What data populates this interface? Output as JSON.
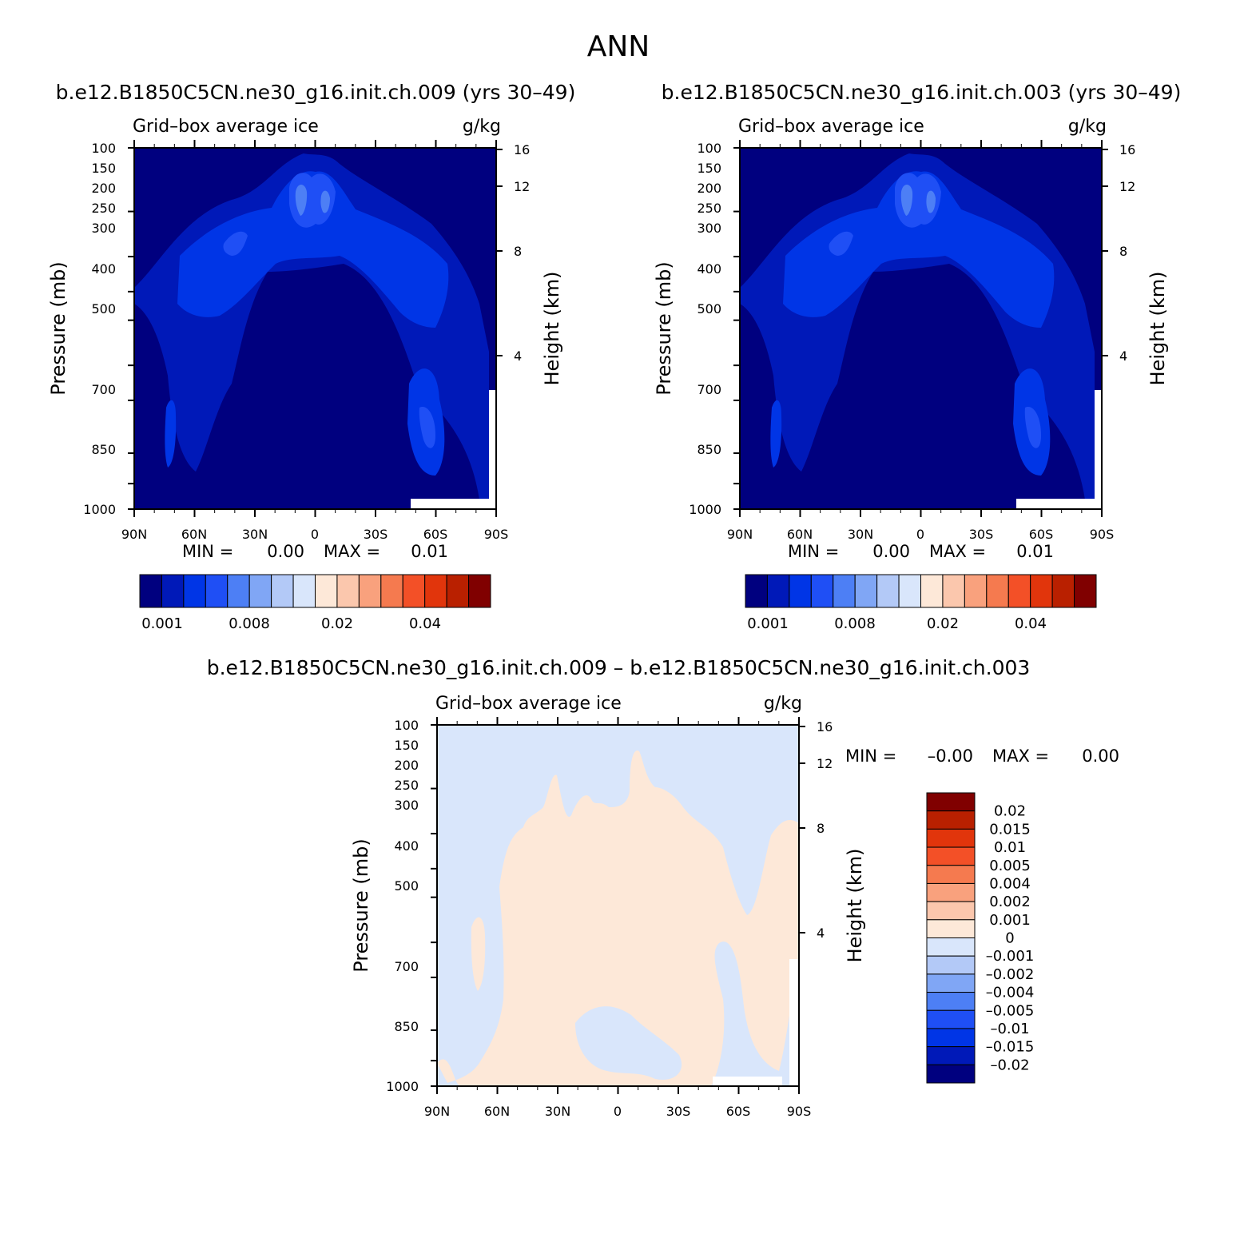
{
  "figure": {
    "season": "ANN"
  },
  "chart_data": [
    {
      "type": "heatmap",
      "run_title": "b.e12.B1850C5CN.ne30_g16.init.ch.009 (yrs 30–49)",
      "field_label": "Grid–box average ice",
      "units": "g/kg",
      "xlabel": "",
      "ylabel": "Pressure (mb)",
      "ylabel_right": "Height (km)",
      "x_ticks": [
        "90N",
        "60N",
        "30N",
        "0",
        "30S",
        "60S",
        "90S"
      ],
      "y_ticks": [
        "100",
        "150",
        "200",
        "250",
        "300",
        "400",
        "500",
        "700",
        "850",
        "1000"
      ],
      "y_right_ticks": [
        "16",
        "12",
        "8",
        "4"
      ],
      "min_label": "MIN =",
      "min_value": "0.00",
      "max_label": "MAX =",
      "max_value": "0.01",
      "colorbar_labels": [
        "0.001",
        "0.008",
        "0.02",
        "0.04"
      ],
      "colorbar_colors": [
        "#00007f",
        "#0019b8",
        "#0035e6",
        "#1f4ff5",
        "#4d7ff5",
        "#80a6f5",
        "#b3c9f7",
        "#d9e6fb",
        "#fde8d8",
        "#fbc7ad",
        "#f9a17d",
        "#f57a4f",
        "#f35027",
        "#e1350c",
        "#b92000",
        "#800000"
      ],
      "field_levels": [
        {
          "pressure_mb": 100,
          "g_per_kg": [
            0.0002,
            0.0003,
            0.0005,
            0.001,
            0.0015,
            0.002,
            0.002,
            0.0015,
            0.001,
            0.0005,
            0.0003,
            0.0002,
            0.0002
          ]
        },
        {
          "pressure_mb": 200,
          "g_per_kg": [
            0.0005,
            0.001,
            0.002,
            0.003,
            0.004,
            0.006,
            0.006,
            0.005,
            0.003,
            0.002,
            0.001,
            0.0005,
            0.0003
          ]
        },
        {
          "pressure_mb": 300,
          "g_per_kg": [
            0.001,
            0.002,
            0.004,
            0.006,
            0.004,
            0.004,
            0.004,
            0.004,
            0.004,
            0.004,
            0.003,
            0.002,
            0.001
          ]
        },
        {
          "pressure_mb": 400,
          "g_per_kg": [
            0.002,
            0.004,
            0.004,
            0.003,
            0.002,
            0.001,
            0.001,
            0.001,
            0.002,
            0.004,
            0.004,
            0.003,
            0.001
          ]
        },
        {
          "pressure_mb": 500,
          "g_per_kg": [
            0.002,
            0.003,
            0.002,
            0.002,
            0.001,
            0.0005,
            0.0005,
            0.0005,
            0.001,
            0.002,
            0.004,
            0.003,
            0.002
          ]
        },
        {
          "pressure_mb": 700,
          "g_per_kg": [
            0.001,
            0.002,
            0.002,
            0.002,
            0.0005,
            0.0002,
            0.0002,
            0.0002,
            0.0005,
            0.002,
            0.006,
            0.001,
            0.001
          ]
        },
        {
          "pressure_mb": 850,
          "g_per_kg": [
            0.0005,
            0.002,
            0.002,
            0.001,
            0.0003,
            0.0002,
            0.0002,
            0.0002,
            0.0003,
            0.002,
            0.005,
            0.0005,
            0.0005
          ]
        },
        {
          "pressure_mb": 1000,
          "g_per_kg": [
            0.0002,
            0.0002,
            0.0002,
            0.0002,
            0.0002,
            0.0002,
            0.0002,
            0.0002,
            0.0002,
            0.0002,
            0.0002,
            0.0002,
            0.0002
          ]
        }
      ],
      "field_latitudes": [
        90,
        75,
        60,
        45,
        30,
        15,
        0,
        -15,
        -30,
        -45,
        -60,
        -75,
        -90
      ]
    },
    {
      "type": "heatmap",
      "run_title": "b.e12.B1850C5CN.ne30_g16.init.ch.003 (yrs 30–49)",
      "field_label": "Grid–box average ice",
      "units": "g/kg",
      "xlabel": "",
      "ylabel": "Pressure (mb)",
      "ylabel_right": "Height (km)",
      "x_ticks": [
        "90N",
        "60N",
        "30N",
        "0",
        "30S",
        "60S",
        "90S"
      ],
      "y_ticks": [
        "100",
        "150",
        "200",
        "250",
        "300",
        "400",
        "500",
        "700",
        "850",
        "1000"
      ],
      "y_right_ticks": [
        "16",
        "12",
        "8",
        "4"
      ],
      "min_label": "MIN =",
      "min_value": "0.00",
      "max_label": "MAX =",
      "max_value": "0.01",
      "colorbar_labels": [
        "0.001",
        "0.008",
        "0.02",
        "0.04"
      ],
      "colorbar_colors": [
        "#00007f",
        "#0019b8",
        "#0035e6",
        "#1f4ff5",
        "#4d7ff5",
        "#80a6f5",
        "#b3c9f7",
        "#d9e6fb",
        "#fde8d8",
        "#fbc7ad",
        "#f9a17d",
        "#f57a4f",
        "#f35027",
        "#e1350c",
        "#b92000",
        "#800000"
      ]
    },
    {
      "type": "heatmap",
      "run_title": "b.e12.B1850C5CN.ne30_g16.init.ch.009 – b.e12.B1850C5CN.ne30_g16.init.ch.003",
      "field_label": "Grid–box average ice",
      "units": "g/kg",
      "xlabel": "",
      "ylabel": "Pressure (mb)",
      "ylabel_right": "Height (km)",
      "x_ticks": [
        "90N",
        "60N",
        "30N",
        "0",
        "30S",
        "60S",
        "90S"
      ],
      "y_ticks": [
        "100",
        "150",
        "200",
        "250",
        "300",
        "400",
        "500",
        "700",
        "850",
        "1000"
      ],
      "y_right_ticks": [
        "16",
        "12",
        "8",
        "4"
      ],
      "min_label": "MIN =",
      "min_value": "–0.00",
      "max_label": "MAX =",
      "max_value": "0.00",
      "colorbar_labels": [
        "0.02",
        "0.015",
        "0.01",
        "0.005",
        "0.004",
        "0.002",
        "0.001",
        "0",
        "–0.001",
        "–0.002",
        "–0.004",
        "–0.005",
        "–0.01",
        "–0.015",
        "–0.02"
      ],
      "colorbar_colors": [
        "#800000",
        "#b92000",
        "#e1350c",
        "#f35027",
        "#f57a4f",
        "#f9a17d",
        "#fbc7ad",
        "#fde8d8",
        "#d9e6fb",
        "#b3c9f7",
        "#80a6f5",
        "#4d7ff5",
        "#1f4ff5",
        "#0035e6",
        "#0019b8",
        "#00007f"
      ],
      "diff_sign_at_level": [
        {
          "pressure_mb": 100,
          "sign": [
            -1,
            -1,
            -1,
            -1,
            -1,
            -1,
            -1,
            -1,
            -1,
            -1,
            -1,
            -1,
            -1
          ]
        },
        {
          "pressure_mb": 300,
          "sign": [
            -1,
            -1,
            -1,
            -1,
            1,
            1,
            1,
            1,
            1,
            1,
            -1,
            -1,
            -1
          ]
        },
        {
          "pressure_mb": 500,
          "sign": [
            -1,
            -1,
            1,
            1,
            1,
            1,
            1,
            1,
            1,
            1,
            -1,
            1,
            1
          ]
        },
        {
          "pressure_mb": 700,
          "sign": [
            -1,
            1,
            1,
            1,
            1,
            1,
            1,
            1,
            1,
            -1,
            1,
            1,
            1
          ]
        },
        {
          "pressure_mb": 1000,
          "sign": [
            1,
            -1,
            1,
            1,
            1,
            1,
            1,
            1,
            1,
            1,
            -1,
            -1,
            -1
          ]
        }
      ],
      "diff_latitudes": [
        90,
        75,
        60,
        45,
        30,
        15,
        0,
        -15,
        -30,
        -45,
        -60,
        -75,
        -90
      ]
    }
  ]
}
